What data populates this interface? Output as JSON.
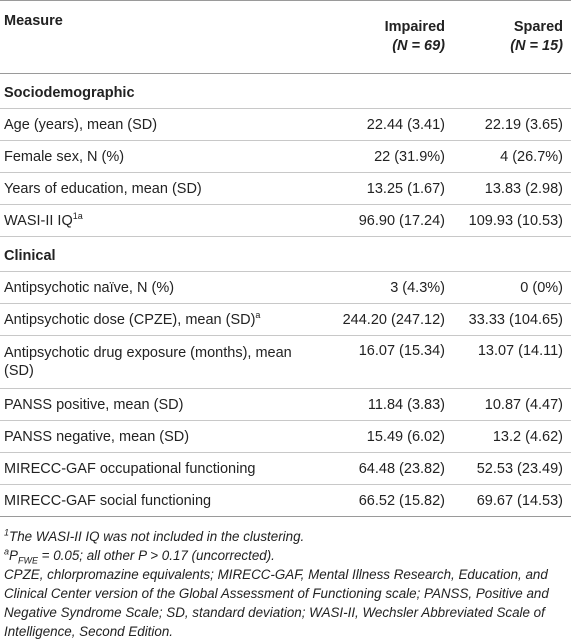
{
  "table": {
    "headers": {
      "measure": "Measure",
      "impaired_title": "Impaired",
      "impaired_n": "(N = 69)",
      "spared_title": "Spared",
      "spared_n": "(N = 15)"
    },
    "sections": [
      {
        "title": "Sociodemographic",
        "rows": [
          {
            "label": "Age (years), mean (SD)",
            "impaired": "22.44 (3.41)",
            "spared": "22.19 (3.65)"
          },
          {
            "label": "Female sex, N (%)",
            "impaired": "22 (31.9%)",
            "spared": "4 (26.7%)"
          },
          {
            "label": "Years of education, mean (SD)",
            "impaired": "13.25 (1.67)",
            "spared": "13.83 (2.98)"
          },
          {
            "label": "WASI-II IQ",
            "label_sup": "1a",
            "impaired": "96.90 (17.24)",
            "spared": "109.93 (10.53)"
          }
        ]
      },
      {
        "title": "Clinical",
        "rows": [
          {
            "label": "Antipsychotic naïve, N (%)",
            "impaired": "3 (4.3%)",
            "spared": "0 (0%)"
          },
          {
            "label": "Antipsychotic dose (CPZE), mean (SD)",
            "label_sup": "a",
            "impaired": "244.20 (247.12)",
            "spared": "33.33 (104.65)"
          },
          {
            "label": "Antipsychotic drug exposure (months), mean (SD)",
            "impaired": "16.07 (15.34)",
            "spared": "13.07 (14.11)"
          },
          {
            "label": "PANSS positive, mean (SD)",
            "impaired": "11.84 (3.83)",
            "spared": "10.87 (4.47)"
          },
          {
            "label": "PANSS negative, mean (SD)",
            "impaired": "15.49 (6.02)",
            "spared": "13.2 (4.62)"
          },
          {
            "label": "MIRECC-GAF occupational functioning",
            "impaired": "64.48 (23.82)",
            "spared": "52.53 (23.49)"
          },
          {
            "label": "MIRECC-GAF social functioning",
            "impaired": "66.52 (15.82)",
            "spared": "69.67 (14.53)"
          }
        ]
      }
    ]
  },
  "footnotes": {
    "note1_sup": "1",
    "note1": "The WASI-II IQ was not included in the clustering.",
    "note2_sup": "a",
    "note2_p": "P",
    "note2_sub": "FWE",
    "note2_rest": " = 0.05; all other P > 0.17 (uncorrected).",
    "abbreviations": "CPZE, chlorpromazine equivalents; MIRECC-GAF, Mental Illness Research, Education, and Clinical Center version of the Global Assessment of Functioning scale; PANSS, Positive and Negative Syndrome Scale; SD, standard deviation; WASI-II, Wechsler Abbreviated Scale of Intelligence, Second Edition."
  }
}
